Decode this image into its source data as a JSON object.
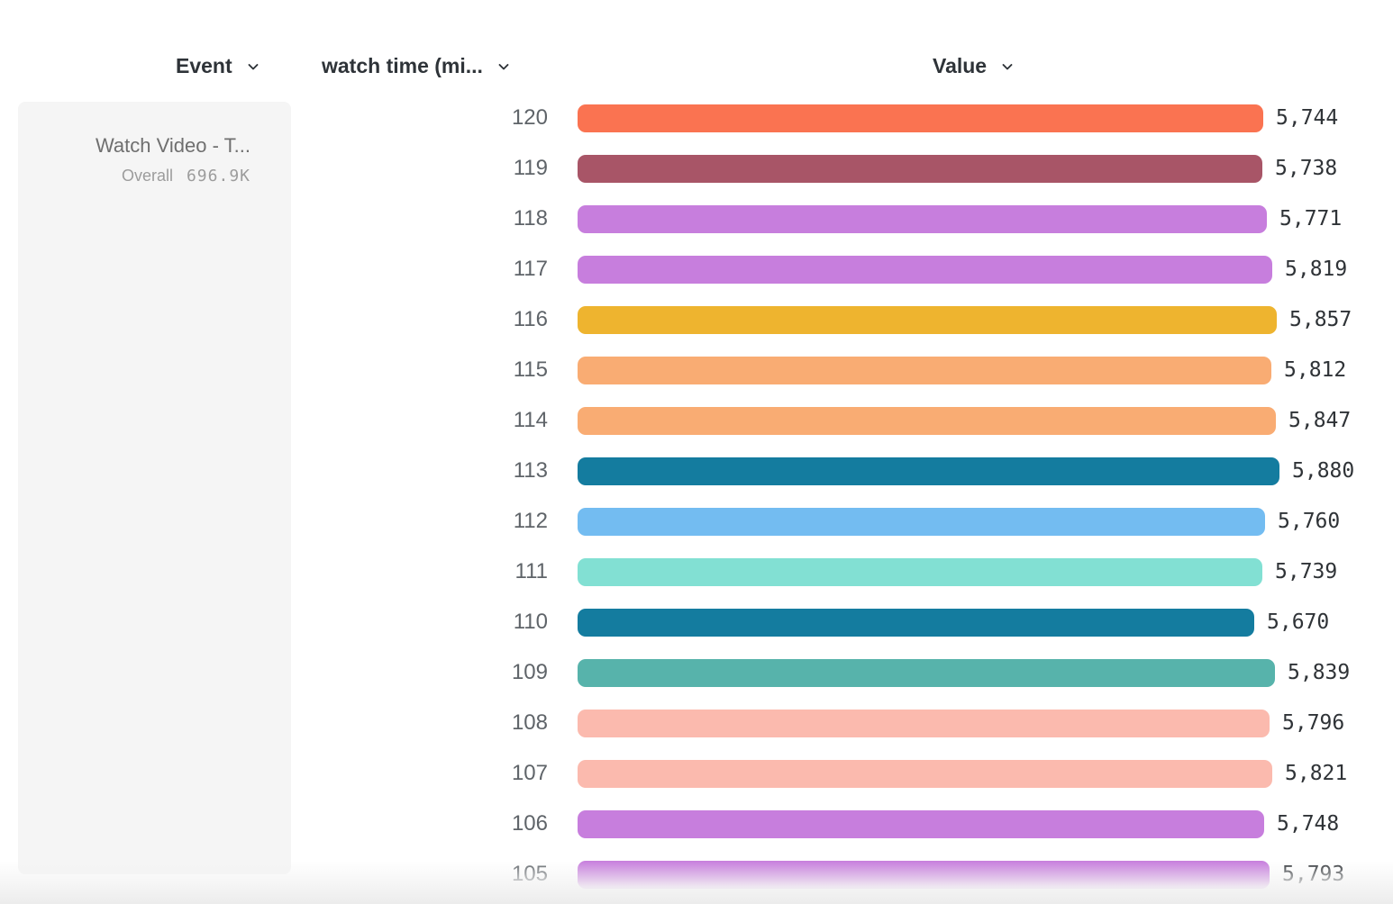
{
  "header": {
    "event_label": "Event",
    "watch_time_label": "watch time (mi...",
    "value_label": "Value"
  },
  "event_panel": {
    "title": "Watch Video - T...",
    "overall_label": "Overall",
    "overall_value": "696.9K"
  },
  "chart_data": {
    "type": "bar",
    "orientation": "horizontal",
    "title": "",
    "xlabel": "Value",
    "ylabel": "watch time (mi...",
    "xlim": [
      0,
      5880
    ],
    "categories": [
      "120",
      "119",
      "118",
      "117",
      "116",
      "115",
      "114",
      "113",
      "112",
      "111",
      "110",
      "109",
      "108",
      "107",
      "106",
      "105"
    ],
    "values": [
      5744,
      5738,
      5771,
      5819,
      5857,
      5812,
      5847,
      5880,
      5760,
      5739,
      5670,
      5839,
      5796,
      5821,
      5748,
      5793
    ],
    "value_labels": [
      "5,744",
      "5,738",
      "5,771",
      "5,819",
      "5,857",
      "5,812",
      "5,847",
      "5,880",
      "5,760",
      "5,739",
      "5,670",
      "5,839",
      "5,796",
      "5,821",
      "5,748",
      "5,793"
    ],
    "bar_colors": [
      "#fa7351",
      "#a85567",
      "#c77edd",
      "#c77edd",
      "#eeb42f",
      "#f9ac73",
      "#f9ac73",
      "#147c9f",
      "#73bcf1",
      "#82e0d3",
      "#147c9f",
      "#57b3ab",
      "#fbbaae",
      "#fbbaae",
      "#c77edd",
      "#c77edd"
    ],
    "grid": false,
    "legend": false
  }
}
